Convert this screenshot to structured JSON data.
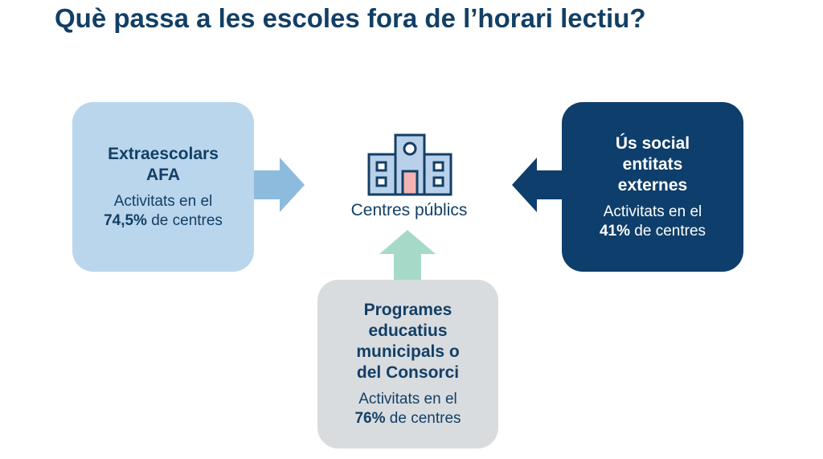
{
  "title": "Què passa a les escoles fora de l’horari lectiu?",
  "center": {
    "label": "Centres públics",
    "icon": "school-building-icon"
  },
  "boxes": {
    "left": {
      "heading1": "Extraescolars",
      "heading2": "AFA",
      "text": "Activitats en el",
      "value": "74,5%",
      "suffix": " de centres"
    },
    "right": {
      "heading1": "Ús social",
      "heading2": "entitats",
      "heading3": "externes",
      "text": "Activitats en el",
      "value": "41%",
      "suffix": " de centres"
    },
    "bottom": {
      "heading1": "Programes",
      "heading2": "educatius",
      "heading3": "municipals o",
      "heading4": "del Consorci",
      "text": "Activitats en el",
      "value": "76%",
      "suffix": " de centres"
    }
  },
  "colors": {
    "left": "#bad6ec",
    "left_arrow": "#8dbbde",
    "right": "#0e3e6b",
    "right_arrow": "#0e3e6b",
    "bottom": "#d9dcdf",
    "bottom_arrow": "#a6d9c8",
    "title": "#123f66"
  }
}
